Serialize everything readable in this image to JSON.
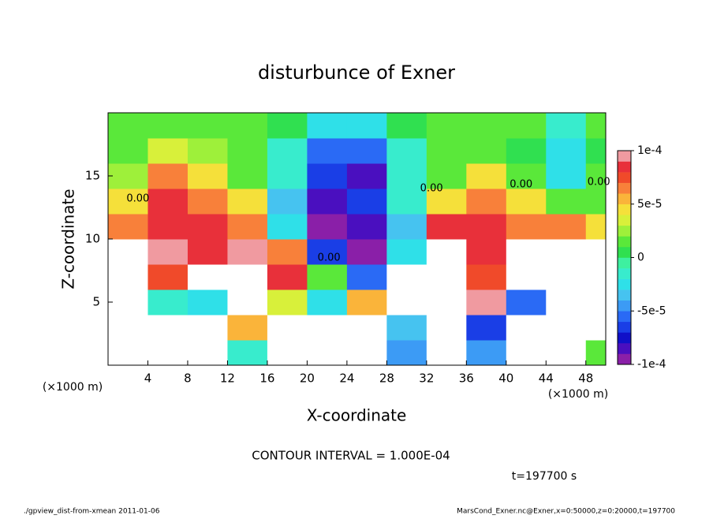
{
  "chart_data": {
    "type": "heatmap",
    "title": "disturbunce of Exner",
    "x_label": "X-coordinate",
    "y_label": "Z-coordinate",
    "x_unit": "(×1000 m)",
    "y_unit": "(×1000 m)",
    "contour_note": "CONTOUR INTERVAL = 1.000E-04",
    "time_note": "t=197700 s",
    "footer_left": "./gpview_dist-from-xmean  2011-01-06",
    "footer_right": "MarsCond_Exner.nc@Exner,x=0:50000,z=0:20000,t=197700",
    "xlim": [
      0,
      50
    ],
    "xticks": [
      4,
      8,
      12,
      16,
      20,
      24,
      28,
      32,
      36,
      40,
      44,
      48
    ],
    "ylim": [
      0,
      20
    ],
    "yticks": [
      5,
      10,
      15
    ],
    "x": [
      2,
      6,
      10,
      14,
      18,
      22,
      26,
      30,
      34,
      38,
      42,
      46,
      50
    ],
    "y": [
      1,
      3,
      5,
      7,
      9,
      11,
      13,
      15,
      17,
      19
    ],
    "z": [
      [
        -0.00016,
        -0.00016,
        0.00011,
        -2e-05,
        0.00012,
        -0.00014,
        0.00012,
        -5e-05,
        0.00012,
        -5e-05,
        -0.00016,
        0.00013,
        1e-05
      ],
      [
        -0.00016,
        -0.00014,
        0.00013,
        5e-05,
        0.00013,
        -0.00013,
        0.00013,
        -4e-05,
        0.00012,
        -7e-05,
        -0.00015,
        0.00012,
        -0.00012
      ],
      [
        -0.00015,
        -2e-05,
        -3e-05,
        0.00012,
        3e-05,
        -3e-05,
        5e-05,
        -0.00016,
        0.00014,
        0.0001,
        -6e-05,
        0.00014,
        -0.00011
      ],
      [
        -0.00013,
        7e-05,
        0.00013,
        0.00013,
        8e-05,
        1e-05,
        -6e-05,
        -0.00015,
        0.00012,
        7e-05,
        0.00013,
        0.00012,
        -0.00012
      ],
      [
        0.00012,
        9e-05,
        8e-05,
        9.5e-05,
        6e-05,
        -7e-05,
        -9e-05,
        -3e-05,
        0.00012,
        8e-05,
        0.00012,
        0.00013,
        0.00012
      ],
      [
        6e-05,
        8e-05,
        8e-05,
        6e-05,
        -3e-05,
        -9.5e-05,
        -8e-05,
        -4e-05,
        8e-05,
        8e-05,
        6e-05,
        6e-05,
        4e-05
      ],
      [
        4e-05,
        8e-05,
        6e-05,
        4e-05,
        -4e-05,
        -8e-05,
        -7e-05,
        -2e-05,
        4e-05,
        6e-05,
        4e-05,
        1e-05,
        1e-05
      ],
      [
        2e-05,
        6e-05,
        4e-05,
        1e-05,
        -2e-05,
        -7e-05,
        -8e-05,
        -2e-05,
        1e-05,
        4e-05,
        1e-05,
        -3e-05,
        1e-05
      ],
      [
        1e-05,
        3e-05,
        2e-05,
        1e-05,
        -2e-05,
        -6e-05,
        -6e-05,
        -2e-05,
        1e-05,
        1e-05,
        0,
        -3e-05,
        0
      ],
      [
        1e-05,
        1e-05,
        1e-05,
        1e-05,
        0,
        -3e-05,
        -3e-05,
        0,
        1e-05,
        1e-05,
        1e-05,
        -2e-05,
        1e-05
      ]
    ],
    "clim": [
      -0.0001,
      0.0001
    ],
    "colorbar_ticks": [
      {
        "value": 0.0001,
        "label": "1e-4"
      },
      {
        "value": 5e-05,
        "label": "5e-5"
      },
      0,
      {
        "value": -5e-05,
        "label": "-5e-5"
      },
      {
        "value": -0.0001,
        "label": "-1e-4"
      }
    ],
    "colors": [
      "#8a1fa8",
      "#4a0fbf",
      "#1010c8",
      "#1a3ee6",
      "#2a6af5",
      "#3c9bf5",
      "#46c3f0",
      "#2fe0e8",
      "#38eccd",
      "#3ef0a0",
      "#30e050",
      "#5ae83a",
      "#9ef03a",
      "#d8f03a",
      "#f5e03a",
      "#fab43a",
      "#f8803a",
      "#f04a2a",
      "#e8303a",
      "#f09aa0"
    ],
    "out_of_range_color": "#ffffff",
    "annotations": [
      {
        "text": "0.00",
        "x": 3,
        "y": 13.2
      },
      {
        "text": "0.00",
        "x": 22.2,
        "y": 8.5
      },
      {
        "text": "0.00",
        "x": 32.5,
        "y": 14
      },
      {
        "text": "0.00",
        "x": 41.5,
        "y": 14.3
      },
      {
        "text": "0.00",
        "x": 49.3,
        "y": 14.5
      }
    ]
  }
}
